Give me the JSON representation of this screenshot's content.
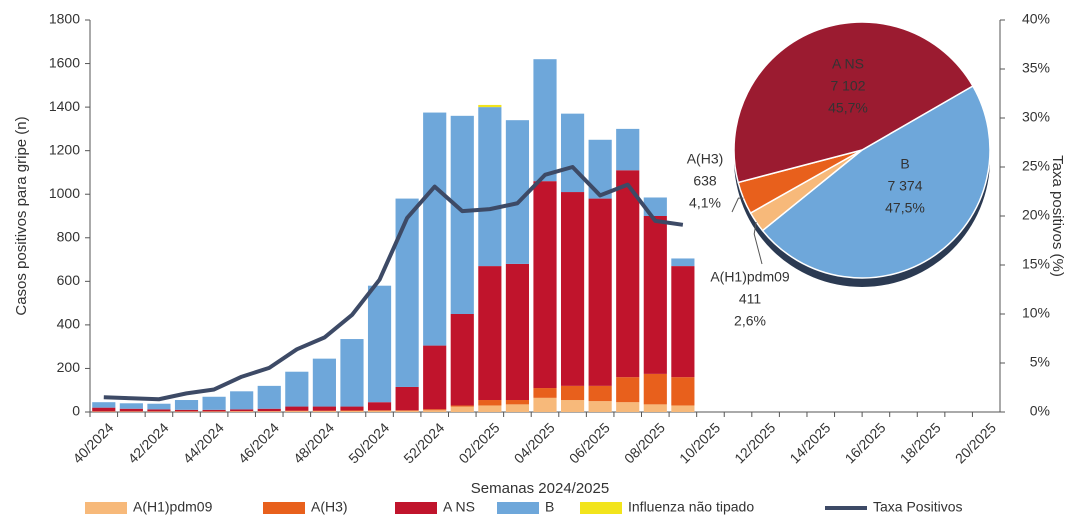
{
  "chart_data": [
    {
      "type": "bar",
      "x_label": "Semanas 2024/2025",
      "y_label": "Casos positivos para gripe (n)",
      "y2_label": "Taxa positivos (%)",
      "categories": [
        "40/2024",
        null,
        "42/2024",
        null,
        "44/2024",
        null,
        "46/2024",
        null,
        "48/2024",
        null,
        "50/2024",
        null,
        "52/2024",
        null,
        "02/2025",
        null,
        "04/2025",
        null,
        "06/2025",
        null,
        "08/2025",
        null,
        "10/2025",
        null,
        "12/2025",
        null,
        "14/2025",
        null,
        "16/2025",
        null,
        "18/2025",
        null,
        "20/2025"
      ],
      "ylim": [
        0,
        1800
      ],
      "yticks": [
        0,
        200,
        400,
        600,
        800,
        1000,
        1200,
        1400,
        1600,
        1800
      ],
      "y2lim": [
        0,
        40
      ],
      "y2ticks": [
        {
          "value": 0,
          "label": "0%"
        },
        {
          "value": 5,
          "label": "5%"
        },
        {
          "value": 10,
          "label": "10%"
        },
        {
          "value": 15,
          "label": "15%"
        },
        {
          "value": 20,
          "label": "20%"
        },
        {
          "value": 25,
          "label": "25%"
        },
        {
          "value": 30,
          "label": "30%"
        },
        {
          "value": 35,
          "label": "35%"
        },
        {
          "value": 40,
          "label": "40%"
        }
      ],
      "series": [
        {
          "name": "A(H1)pdm09",
          "color": "#f7b97a",
          "values": [
            2,
            2,
            2,
            2,
            2,
            3,
            3,
            4,
            4,
            5,
            5,
            5,
            8,
            25,
            30,
            35,
            65,
            55,
            50,
            45,
            35,
            30,
            null,
            null,
            null,
            null,
            null,
            null,
            null,
            null,
            null,
            null,
            null
          ]
        },
        {
          "name": "A(H3)",
          "color": "#e8601c",
          "values": [
            1,
            1,
            1,
            1,
            1,
            1,
            1,
            2,
            2,
            2,
            3,
            3,
            5,
            5,
            25,
            20,
            45,
            65,
            70,
            115,
            140,
            130,
            null,
            null,
            null,
            null,
            null,
            null,
            null,
            null,
            null,
            null,
            null
          ]
        },
        {
          "name": "A NS",
          "color": "#c0142c",
          "values": [
            17,
            12,
            9,
            7,
            7,
            8,
            11,
            19,
            19,
            18,
            37,
            107,
            292,
            420,
            615,
            625,
            950,
            890,
            860,
            950,
            725,
            510,
            null,
            null,
            null,
            null,
            null,
            null,
            null,
            null,
            null,
            null,
            null
          ]
        },
        {
          "name": "B",
          "color": "#6ea7da",
          "values": [
            25,
            25,
            26,
            45,
            60,
            83,
            105,
            160,
            220,
            310,
            535,
            865,
            1070,
            910,
            730,
            660,
            560,
            360,
            270,
            190,
            85,
            35,
            null,
            null,
            null,
            null,
            null,
            null,
            null,
            null,
            null,
            null,
            null
          ]
        },
        {
          "name": "Influenza não tipado",
          "color": "#f2e41c",
          "values": [
            0,
            0,
            0,
            0,
            0,
            0,
            0,
            0,
            0,
            0,
            0,
            0,
            0,
            0,
            10,
            0,
            0,
            0,
            0,
            0,
            0,
            0,
            null,
            null,
            null,
            null,
            null,
            null,
            null,
            null,
            null,
            null,
            null
          ]
        },
        {
          "name": "Taxa Positivos",
          "color": "#3d4a66",
          "axis": "y2",
          "type": "line",
          "values": [
            1.5,
            1.4,
            1.3,
            1.9,
            2.3,
            3.6,
            4.5,
            6.4,
            7.6,
            9.9,
            13.5,
            19.8,
            23.0,
            20.5,
            20.7,
            21.3,
            24.2,
            25.0,
            22.1,
            23.2,
            19.5,
            19.1,
            null,
            null,
            null,
            null,
            null,
            null,
            null,
            null,
            null,
            null,
            null
          ]
        }
      ]
    },
    {
      "type": "pie",
      "categories": [
        "A(H1)pdm09",
        "A(H3)",
        "A NS",
        "B"
      ],
      "values": [
        411,
        638,
        7102,
        7374
      ],
      "value_labels": [
        "411",
        "638",
        "7 102",
        "7 374"
      ],
      "percent_labels": [
        "2,6%",
        "4,1%",
        "45,7%",
        "47,5%"
      ],
      "colors": [
        "#f7b97a",
        "#e8601c",
        "#9b1b30",
        "#6ea7da"
      ]
    }
  ]
}
